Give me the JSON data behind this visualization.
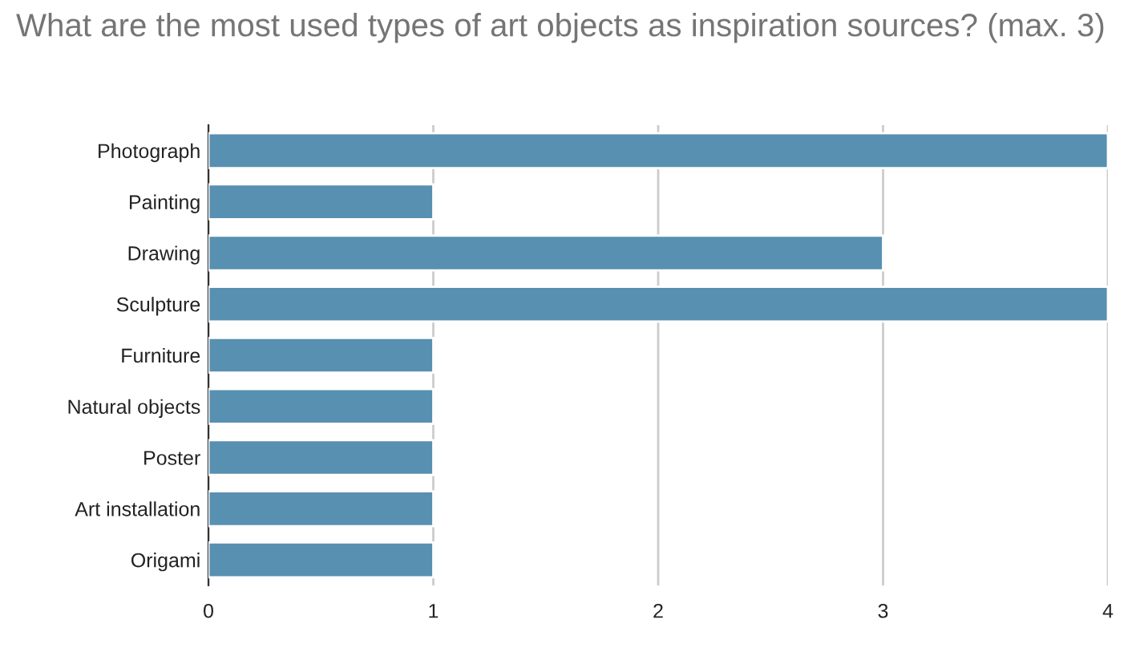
{
  "chart_data": {
    "type": "bar",
    "orientation": "horizontal",
    "title": "What are the most used types of art objects as inspiration sources? (max. 3)",
    "categories": [
      "Photograph",
      "Painting",
      "Drawing",
      "Sculpture",
      "Furniture",
      "Natural objects",
      "Poster",
      "Art installation",
      "Origami"
    ],
    "values": [
      4,
      1,
      3,
      4,
      1,
      1,
      1,
      1,
      1
    ],
    "color": "#5790b0",
    "xlim": [
      0,
      4
    ],
    "xticks": [
      0,
      1,
      2,
      3,
      4
    ],
    "grid": "x",
    "legend": false
  }
}
